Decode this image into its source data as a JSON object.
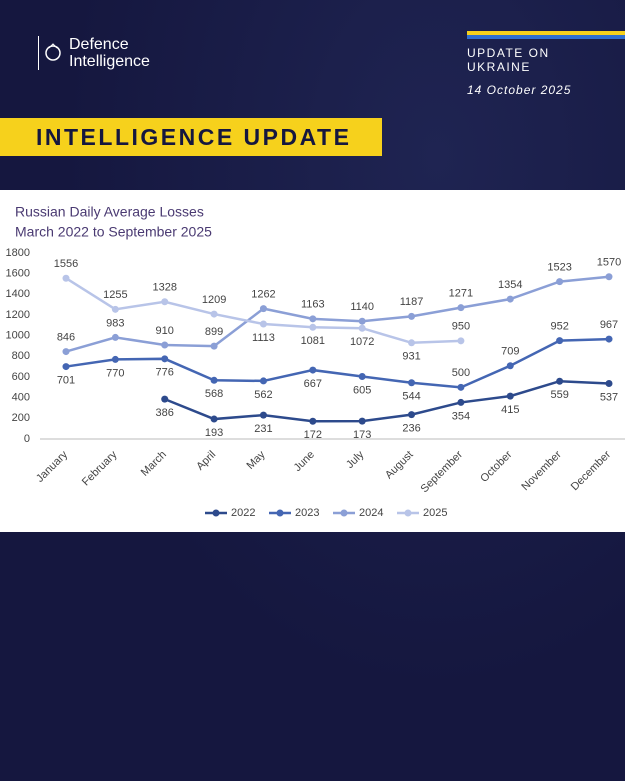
{
  "header": {
    "org": "Defence Intelligence",
    "kicker": "UPDATE ON UKRAINE",
    "date": "14 October 2025",
    "banner": "INTELLIGENCE UPDATE"
  },
  "chart_data": {
    "type": "line",
    "title": "Russian Daily Average Losses",
    "subtitle": "March 2022 to September 2025",
    "categories": [
      "January",
      "February",
      "March",
      "April",
      "May",
      "June",
      "July",
      "August",
      "September",
      "October",
      "November",
      "December"
    ],
    "series": [
      {
        "name": "2022",
        "color": "#2d4a8c",
        "values": [
          null,
          null,
          386,
          193,
          231,
          172,
          173,
          236,
          354,
          415,
          559,
          537
        ]
      },
      {
        "name": "2023",
        "color": "#4466b3",
        "values": [
          701,
          770,
          776,
          568,
          562,
          667,
          605,
          544,
          500,
          709,
          952,
          967
        ]
      },
      {
        "name": "2024",
        "color": "#8b9fd6",
        "values": [
          846,
          983,
          910,
          899,
          1262,
          1163,
          1140,
          1187,
          1271,
          1354,
          1523,
          1570
        ]
      },
      {
        "name": "2025",
        "color": "#b8c4e8",
        "values": [
          1556,
          1255,
          1328,
          1209,
          1113,
          1081,
          1072,
          931,
          950,
          null,
          null,
          null
        ]
      }
    ],
    "ylim": [
      0,
      1800
    ],
    "yticks": [
      0,
      200,
      400,
      600,
      800,
      1000,
      1200,
      1400,
      1600,
      1800
    ],
    "grid": false,
    "legend": "bottom"
  }
}
